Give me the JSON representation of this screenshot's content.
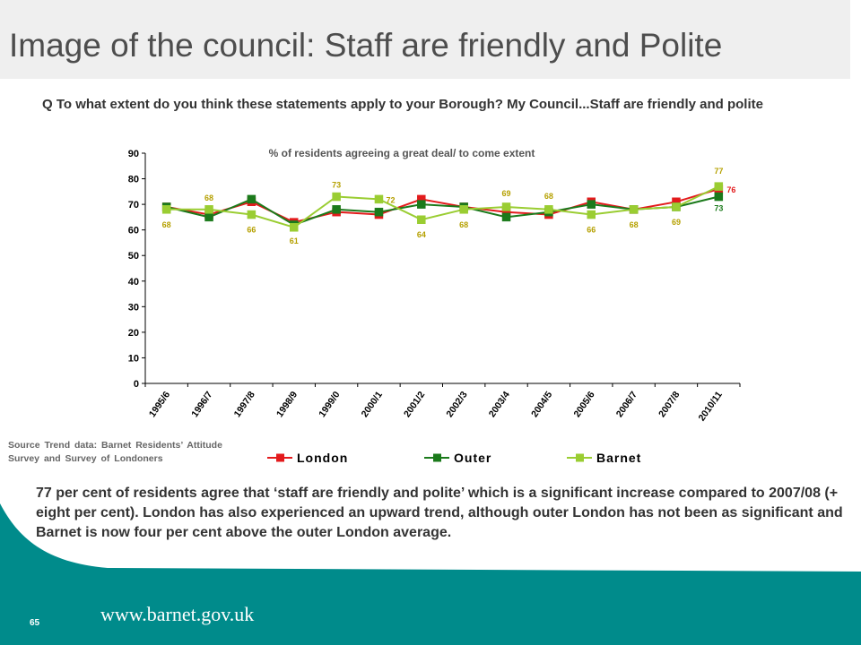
{
  "slide": {
    "title": "Image of the council: Staff are friendly and Polite",
    "question": "Q  To what extent do you think these statements apply to your Borough? My Council...Staff are friendly and polite",
    "source": "Source Trend data:  Barnet  Residents’ Attitude  Survey and Survey of Londoners",
    "summary": "77 per cent of residents agree that ‘staff are friendly and polite’ which is a significant increase compared to 2007/08  (+ eight per cent). London has also experienced an upward trend, although outer London has not been as significant and Barnet is now four per cent above the outer London average.",
    "footer_url": "www.barnet.gov.uk",
    "page_number": "65"
  },
  "chart_data": {
    "type": "line",
    "title": "% of residents agreeing a great deal/ to come extent",
    "xlabel": "",
    "ylabel": "",
    "ylim": [
      0,
      90
    ],
    "yticks": [
      0,
      10,
      20,
      30,
      40,
      50,
      60,
      70,
      80,
      90
    ],
    "categories": [
      "1995/6",
      "1996/7",
      "1997/8",
      "1998/9",
      "1999/0",
      "2000/1",
      "2001/2",
      "2002/3",
      "2003/4",
      "2004/5",
      "2005/6",
      "2006/7",
      "2007/8",
      "2010/11"
    ],
    "legend_position": "bottom",
    "grid": false,
    "series": [
      {
        "name": "London",
        "color": "#e31a1c",
        "label_color": "#e31a1c",
        "values": [
          69,
          66,
          71,
          63,
          67,
          66,
          72,
          69,
          67,
          66,
          71,
          68,
          71,
          76
        ],
        "labels": [
          null,
          null,
          null,
          null,
          null,
          null,
          null,
          null,
          null,
          null,
          null,
          null,
          null,
          "76"
        ]
      },
      {
        "name": "Outer",
        "color": "#1b7a1b",
        "label_color": "#1b7a1b",
        "values": [
          69,
          65,
          72,
          62,
          68,
          67,
          70,
          69,
          65,
          67,
          70,
          68,
          69,
          73
        ],
        "labels": [
          null,
          null,
          null,
          null,
          null,
          null,
          null,
          null,
          null,
          null,
          null,
          null,
          null,
          "73"
        ]
      },
      {
        "name": "Barnet",
        "color": "#9acd32",
        "label_color": "#b5a000",
        "values": [
          68,
          68,
          66,
          61,
          73,
          72,
          64,
          68,
          69,
          68,
          66,
          68,
          69,
          77
        ],
        "labels": [
          "68",
          "68",
          "66",
          "61",
          "73",
          "72",
          "64",
          "68",
          "69",
          "68",
          "66",
          "68",
          "69",
          "77"
        ]
      }
    ]
  }
}
